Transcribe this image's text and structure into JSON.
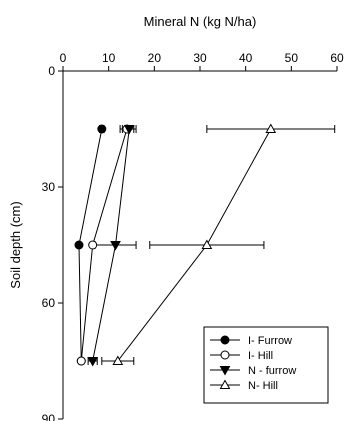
{
  "chart_data": {
    "type": "scatter",
    "x_axis_title": "Mineral N (kg N/ha)",
    "y_axis_title": "Soil depth (cm)",
    "x_range": [
      0,
      60
    ],
    "y_range": [
      0,
      90
    ],
    "y_inverted": true,
    "x_ticks": [
      "0",
      "10",
      "20",
      "30",
      "40",
      "50",
      "60"
    ],
    "y_ticks": [
      "0",
      "30",
      "60",
      "90"
    ],
    "x_axis_position": "top",
    "grid": false,
    "legend_position": "bottom-right",
    "series": [
      {
        "name": "I- Furrow",
        "marker": "circle-filled",
        "points": [
          {
            "x": 8.5,
            "y": 15,
            "err": 0.5
          },
          {
            "x": 3.5,
            "y": 45,
            "err": 0
          },
          {
            "x": 4.0,
            "y": 75,
            "err": 0
          }
        ]
      },
      {
        "name": "I- Hill",
        "marker": "circle-open",
        "points": [
          {
            "x": 14.0,
            "y": 15,
            "err": 1.5
          },
          {
            "x": 6.5,
            "y": 45,
            "err": 0
          },
          {
            "x": 4.0,
            "y": 75,
            "err": 0
          }
        ]
      },
      {
        "name": "N - furrow",
        "marker": "triangle-down-filled",
        "points": [
          {
            "x": 14.5,
            "y": 15,
            "err": 1.5
          },
          {
            "x": 11.5,
            "y": 45,
            "err": 4.5
          },
          {
            "x": 6.5,
            "y": 75,
            "err": 1.0
          }
        ]
      },
      {
        "name": "N- Hill",
        "marker": "triangle-up-open",
        "points": [
          {
            "x": 45.5,
            "y": 15,
            "err": 14.0
          },
          {
            "x": 31.5,
            "y": 45,
            "err": 12.5
          },
          {
            "x": 12.0,
            "y": 75,
            "err": 3.5
          }
        ]
      }
    ]
  }
}
